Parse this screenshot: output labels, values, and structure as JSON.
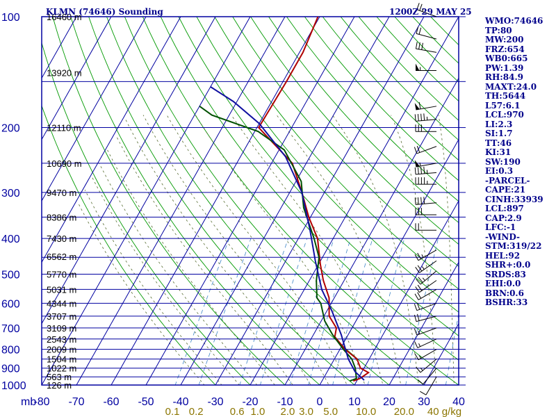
{
  "header": {
    "station": "KLMN (74646) Sounding",
    "time": "1200Z 29 MAY 25"
  },
  "axes": {
    "pressure_label_unit": "mb",
    "pressure_levels": [
      100,
      200,
      300,
      400,
      500,
      600,
      700,
      800,
      900,
      1000
    ],
    "temp_ticks": [
      -80,
      -70,
      -60,
      -50,
      -40,
      -30,
      -20,
      -10,
      0,
      10,
      20,
      30,
      40
    ],
    "mixing_ratio_labels": [
      "0.1",
      "0.2",
      "0.6",
      "1.0",
      "2.0",
      "3.0",
      "5.0",
      "10.0",
      "20.0",
      "40 g/kg"
    ],
    "height_labels": [
      {
        "text": "16460 m",
        "p": 100
      },
      {
        "text": "13920 m",
        "p": 142
      },
      {
        "text": "12110 m",
        "p": 200
      },
      {
        "text": "10690 m",
        "p": 250
      },
      {
        "text": "9470 m",
        "p": 300
      },
      {
        "text": "8386 m",
        "p": 350
      },
      {
        "text": "7430 m",
        "p": 400
      },
      {
        "text": "6562 m",
        "p": 448
      },
      {
        "text": "5770 m",
        "p": 500
      },
      {
        "text": "5031 m",
        "p": 550
      },
      {
        "text": "4344 m",
        "p": 600
      },
      {
        "text": "3707 m",
        "p": 650
      },
      {
        "text": "3109 m",
        "p": 700
      },
      {
        "text": "2543 m",
        "p": 750
      },
      {
        "text": "2009 m",
        "p": 800
      },
      {
        "text": "1504 m",
        "p": 850
      },
      {
        "text": "1022 m",
        "p": 900
      },
      {
        "text": "563 m",
        "p": 950
      },
      {
        "text": "126 m",
        "p": 1000
      }
    ]
  },
  "chart_data": {
    "type": "line",
    "title": "KLMN (74646) Sounding",
    "subtitle": "1200Z 29 MAY 25",
    "xlabel": "",
    "ylabel": "mb",
    "xlim": [
      -80,
      40
    ],
    "ylim": [
      1000,
      100
    ],
    "y_scale": "log",
    "series": [
      {
        "color": "#b00000",
        "points": [
          [
            9.0,
            975
          ],
          [
            10.5,
            960
          ],
          [
            12.0,
            925
          ],
          [
            9.0,
            900
          ],
          [
            6.5,
            850
          ],
          [
            1.5,
            800
          ],
          [
            -3.5,
            740
          ],
          [
            -4.5,
            700
          ],
          [
            -8.5,
            650
          ],
          [
            -11.5,
            580
          ],
          [
            -16.0,
            520
          ],
          [
            -19.5,
            470
          ],
          [
            -24.5,
            400
          ],
          [
            -30.5,
            350
          ],
          [
            -36.5,
            300
          ],
          [
            -44.0,
            250
          ],
          [
            -54.5,
            215
          ],
          [
            -59.5,
            200
          ],
          [
            -59.0,
            150
          ],
          [
            -59.0,
            125
          ],
          [
            -60.5,
            100
          ]
        ]
      },
      {
        "color": "#005000",
        "points": [
          [
            8.0,
            975
          ],
          [
            9.5,
            960
          ],
          [
            7.5,
            900
          ],
          [
            5.0,
            850
          ],
          [
            1.0,
            800
          ],
          [
            -4.5,
            730
          ],
          [
            -9.0,
            670
          ],
          [
            -13.0,
            600
          ],
          [
            -15.0,
            580
          ],
          [
            -18.0,
            520
          ],
          [
            -21.0,
            450
          ],
          [
            -25.5,
            400
          ],
          [
            -33.5,
            330
          ],
          [
            -38.5,
            280
          ],
          [
            -48.5,
            230
          ],
          [
            -59.0,
            205
          ],
          [
            -75.0,
            185
          ],
          [
            -80.0,
            175
          ]
        ]
      },
      {
        "color": "#1010a0",
        "points": [
          [
            12.0,
            970
          ],
          [
            8.0,
            920
          ],
          [
            4.0,
            850
          ],
          [
            -2.0,
            730
          ],
          [
            -8.5,
            630
          ],
          [
            -15.0,
            550
          ],
          [
            -21.5,
            460
          ],
          [
            -28.0,
            380
          ],
          [
            -36.5,
            300
          ],
          [
            -47.0,
            240
          ],
          [
            -60.0,
            195
          ],
          [
            -71.0,
            170
          ],
          [
            -80.0,
            155
          ]
        ]
      }
    ],
    "grid": true,
    "background_lines": [
      "isobars",
      "isotherms",
      "dry adiabats",
      "moist adiabats",
      "mixing ratio lines"
    ]
  },
  "indices": [
    "WMO:74646",
    "TP:80",
    "MW:200",
    "FRZ:654",
    "WB0:665",
    "PW:1.39",
    "RH:84.9",
    "MAXT:24.0",
    "TH:5644",
    "L57:6.1",
    "LCL:970",
    "LI:2.3",
    "SI:1.7",
    "TT:46",
    "KI:31",
    "SW:190",
    "EI:0.3",
    "-PARCEL-",
    "CAPE:21",
    "CINH:33939",
    "LCL:897",
    "CAP:2.9",
    "LFC:-1",
    "-WIND-",
    "STM:319/22",
    "HEL:92",
    "SHR+:0.0",
    "SRDS:83",
    "EHI:0.0",
    "BRN:0.6",
    "BSHR:33"
  ],
  "wind_barbs": [
    {
      "p": 100,
      "dir": 290,
      "kt": 25
    },
    {
      "p": 115,
      "dir": 285,
      "kt": 20
    },
    {
      "p": 125,
      "dir": 280,
      "kt": 30
    },
    {
      "p": 140,
      "dir": 270,
      "kt": 55
    },
    {
      "p": 175,
      "dir": 260,
      "kt": 60
    },
    {
      "p": 190,
      "dir": 265,
      "kt": 45
    },
    {
      "p": 205,
      "dir": 270,
      "kt": 30
    },
    {
      "p": 225,
      "dir": 250,
      "kt": 20
    },
    {
      "p": 250,
      "dir": 260,
      "kt": 55
    },
    {
      "p": 265,
      "dir": 265,
      "kt": 45
    },
    {
      "p": 285,
      "dir": 270,
      "kt": 45
    },
    {
      "p": 320,
      "dir": 265,
      "kt": 40
    },
    {
      "p": 345,
      "dir": 270,
      "kt": 30
    },
    {
      "p": 380,
      "dir": 270,
      "kt": 20
    },
    {
      "p": 430,
      "dir": 240,
      "kt": 25
    },
    {
      "p": 460,
      "dir": 235,
      "kt": 25
    },
    {
      "p": 490,
      "dir": 230,
      "kt": 25
    },
    {
      "p": 520,
      "dir": 235,
      "kt": 20
    },
    {
      "p": 550,
      "dir": 240,
      "kt": 20
    },
    {
      "p": 600,
      "dir": 250,
      "kt": 20
    },
    {
      "p": 650,
      "dir": 255,
      "kt": 20
    },
    {
      "p": 700,
      "dir": 250,
      "kt": 15
    },
    {
      "p": 750,
      "dir": 245,
      "kt": 15
    },
    {
      "p": 800,
      "dir": 240,
      "kt": 15
    },
    {
      "p": 850,
      "dir": 230,
      "kt": 15
    },
    {
      "p": 900,
      "dir": 220,
      "kt": 10
    },
    {
      "p": 950,
      "dir": 210,
      "kt": 10
    }
  ],
  "colors": {
    "frame": "#0000a0",
    "dry_adiabat": "#009900",
    "moist_adiabat": "#556b2f",
    "mixing_ratio": "#3d85c6",
    "mixing_label": "#8b7500",
    "axis_text": "#0000a0",
    "height_text": "#000000",
    "barb": "#000000"
  }
}
